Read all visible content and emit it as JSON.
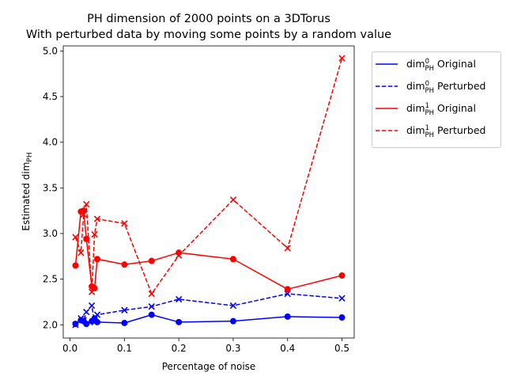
{
  "chart_data": {
    "type": "line",
    "title": "PH dimension of 2000 points on a 3DTorus",
    "subtitle": "With perturbed data by moving some points by a random value",
    "xlabel": "Percentage of noise",
    "ylabel_main": "Estimated dim",
    "ylabel_sub": "PH",
    "xlim": [
      -0.0125,
      0.5225
    ],
    "ylim": [
      1.855,
      5.055
    ],
    "xticks": [
      0.0,
      0.1,
      0.2,
      0.3,
      0.4,
      0.5
    ],
    "xtick_labels": [
      "0.0",
      "0.1",
      "0.2",
      "0.3",
      "0.4",
      "0.5"
    ],
    "yticks": [
      2.0,
      2.5,
      3.0,
      3.5,
      4.0,
      4.5,
      5.0
    ],
    "ytick_labels": [
      "2.0",
      "2.5",
      "3.0",
      "3.5",
      "4.0",
      "4.5",
      "5.0"
    ],
    "grid": false,
    "legend_placement": "outside-right-top",
    "x": [
      0.01,
      0.02,
      0.025,
      0.03,
      0.04,
      0.045,
      0.05,
      0.1,
      0.15,
      0.2,
      0.3,
      0.4,
      0.5
    ],
    "series": [
      {
        "name": "Original",
        "dim_label": "dim",
        "dim_sup": "0",
        "dim_sub": "PH",
        "color": "#0000ff",
        "linestyle": "solid",
        "marker": "circle",
        "values": [
          2.01,
          2.05,
          2.04,
          2.01,
          2.04,
          2.07,
          2.03,
          2.02,
          2.11,
          2.03,
          2.04,
          2.09,
          2.08
        ]
      },
      {
        "name": "Perturbed",
        "dim_label": "dim",
        "dim_sup": "0",
        "dim_sub": "PH",
        "color": "#0000ff",
        "linestyle": "dashed",
        "marker": "x",
        "values": [
          2.0,
          2.07,
          2.05,
          2.14,
          2.21,
          2.03,
          2.11,
          2.16,
          2.2,
          2.28,
          2.21,
          2.34,
          2.29
        ]
      },
      {
        "name": "Original",
        "dim_label": "dim",
        "dim_sup": "1",
        "dim_sub": "PH",
        "color": "#ff0000",
        "linestyle": "solid",
        "marker": "circle",
        "values": [
          2.65,
          3.24,
          3.25,
          2.94,
          2.42,
          2.4,
          2.72,
          2.66,
          2.7,
          2.79,
          2.72,
          2.39,
          2.54
        ]
      },
      {
        "name": "Perturbed",
        "dim_label": "dim",
        "dim_sup": "1",
        "dim_sub": "PH",
        "color": "#ff0000",
        "linestyle": "dashed",
        "marker": "x",
        "values": [
          2.96,
          2.79,
          3.21,
          3.32,
          2.36,
          2.99,
          3.16,
          3.11,
          2.34,
          2.76,
          3.37,
          2.84,
          4.92
        ]
      }
    ]
  }
}
